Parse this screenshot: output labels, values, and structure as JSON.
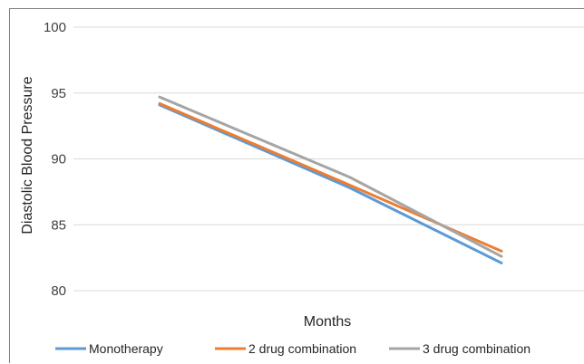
{
  "chart_data": {
    "type": "line",
    "title": "",
    "xlabel": "Months",
    "ylabel": "Diastolic Blood Pressure",
    "ylim": [
      80,
      100
    ],
    "yticks": [
      "80",
      "85",
      "90",
      "95",
      "100"
    ],
    "x": [
      0,
      1,
      2
    ],
    "grid": "horizontal",
    "legend_position": "bottom",
    "series": [
      {
        "name": "Monotherapy",
        "color": "#5B9BD5",
        "values": [
          94.1,
          87.8,
          82.1
        ]
      },
      {
        "name": "2 drug combination",
        "color": "#ED7D31",
        "values": [
          94.2,
          88.0,
          83.0
        ]
      },
      {
        "name": "3 drug combination",
        "color": "#A5A5A5",
        "values": [
          94.7,
          88.6,
          82.6
        ]
      }
    ]
  }
}
